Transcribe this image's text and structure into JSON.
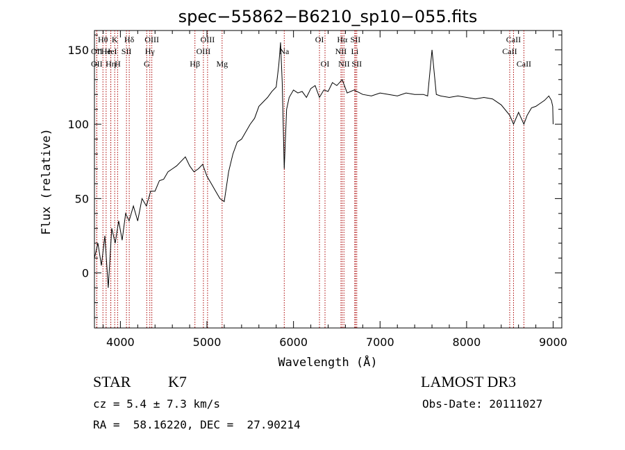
{
  "chart_data": {
    "type": "line",
    "title": "spec−55862−B6210_sp10−055.fits",
    "xlabel": "Wavelength (Å)",
    "ylabel": "Flux (relative)",
    "xlim": [
      3700,
      9100
    ],
    "ylim": [
      -37,
      163
    ],
    "xticks": [
      4000,
      5000,
      6000,
      7000,
      8000,
      9000
    ],
    "xtick_labels": [
      "4000",
      "5000",
      "6000",
      "7000",
      "8000",
      "9000"
    ],
    "yticks": [
      0,
      50,
      100,
      150
    ],
    "ytick_labels": [
      "0",
      "50",
      "100",
      "150"
    ],
    "line_color": "#000000",
    "marker_color": "#aa0000",
    "series": [
      {
        "x": [
          3700,
          3740,
          3780,
          3820,
          3860,
          3900,
          3940,
          3980,
          4020,
          4060,
          4100,
          4150,
          4200,
          4250,
          4300,
          4350,
          4400,
          4450,
          4500,
          4550,
          4600,
          4650,
          4700,
          4750,
          4800,
          4850,
          4900,
          4950,
          5000,
          5050,
          5100,
          5150,
          5200,
          5250,
          5300,
          5350,
          5400,
          5450,
          5500,
          5550,
          5600,
          5650,
          5700,
          5750,
          5800,
          5830,
          5850,
          5870,
          5893,
          5920,
          5950,
          6000,
          6050,
          6100,
          6150,
          6200,
          6250,
          6300,
          6350,
          6400,
          6450,
          6500,
          6563,
          6620,
          6700,
          6800,
          6900,
          7000,
          7100,
          7200,
          7300,
          7400,
          7500,
          7550,
          7600,
          7650,
          7700,
          7800,
          7900,
          8000,
          8100,
          8200,
          8300,
          8400,
          8498,
          8542,
          8600,
          8662,
          8700,
          8750,
          8800,
          8850,
          8900,
          8950,
          8980,
          8995,
          9000
        ],
        "y": [
          10,
          20,
          5,
          25,
          -10,
          30,
          20,
          35,
          22,
          40,
          35,
          45,
          35,
          50,
          45,
          55,
          55,
          62,
          63,
          68,
          70,
          72,
          75,
          78,
          72,
          68,
          70,
          73,
          65,
          60,
          55,
          50,
          48,
          68,
          80,
          88,
          90,
          95,
          100,
          104,
          112,
          115,
          118,
          122,
          125,
          140,
          155,
          128,
          70,
          110,
          118,
          123,
          121,
          122,
          118,
          124,
          126,
          118,
          123,
          122,
          128,
          126,
          130,
          121,
          123,
          120,
          119,
          121,
          120,
          119,
          121,
          120,
          120,
          119,
          150,
          120,
          119,
          118,
          119,
          118,
          117,
          118,
          117,
          113,
          106,
          100,
          108,
          100,
          106,
          111,
          112,
          114,
          116,
          119,
          116,
          112,
          100
        ]
      }
    ],
    "lines": [
      {
        "label": "Hθ",
        "x": 3798,
        "row": 1
      },
      {
        "label": "OII",
        "x": 3727,
        "row": 2
      },
      {
        "label": "OII",
        "x": 3727,
        "row": 3
      },
      {
        "label": "He",
        "x": 3835,
        "row": 2
      },
      {
        "label": "Hη",
        "x": 3889,
        "row": 3
      },
      {
        "label": "K",
        "x": 3934,
        "row": 1
      },
      {
        "label": "HeI",
        "x": 3889,
        "row": 2
      },
      {
        "label": "H",
        "x": 3968,
        "row": 3
      },
      {
        "label": "Hδ",
        "x": 4102,
        "row": 1
      },
      {
        "label": "SII",
        "x": 4070,
        "row": 2
      },
      {
        "label": "OIII",
        "x": 4363,
        "row": 1
      },
      {
        "label": "Hγ",
        "x": 4340,
        "row": 2
      },
      {
        "label": "G",
        "x": 4304,
        "row": 3
      },
      {
        "label": "OIII",
        "x": 5007,
        "row": 1
      },
      {
        "label": "OIII",
        "x": 4959,
        "row": 2
      },
      {
        "label": "Hβ",
        "x": 4861,
        "row": 3
      },
      {
        "label": "Mg",
        "x": 5175,
        "row": 3
      },
      {
        "label": "Na",
        "x": 5893,
        "row": 2
      },
      {
        "label": "OI",
        "x": 6300,
        "row": 1
      },
      {
        "label": "OI",
        "x": 6364,
        "row": 3
      },
      {
        "label": "Hα",
        "x": 6563,
        "row": 1
      },
      {
        "label": "NII",
        "x": 6548,
        "row": 2
      },
      {
        "label": "NII",
        "x": 6583,
        "row": 3
      },
      {
        "label": "SII",
        "x": 6716,
        "row": 1
      },
      {
        "label": "Li",
        "x": 6708,
        "row": 2
      },
      {
        "label": "SII",
        "x": 6731,
        "row": 3
      },
      {
        "label": "CaII",
        "x": 8542,
        "row": 1
      },
      {
        "label": "CaII",
        "x": 8498,
        "row": 2
      },
      {
        "label": "CaII",
        "x": 8662,
        "row": 3
      }
    ]
  },
  "info": {
    "class": "STAR",
    "subclass": "K7",
    "survey": "LAMOST DR3",
    "cz": "cz = 5.4 ± 7.3 km/s",
    "obs_date": "Obs-Date: 20111027",
    "radec": "RA =  58.16220, DEC =  27.90214"
  }
}
